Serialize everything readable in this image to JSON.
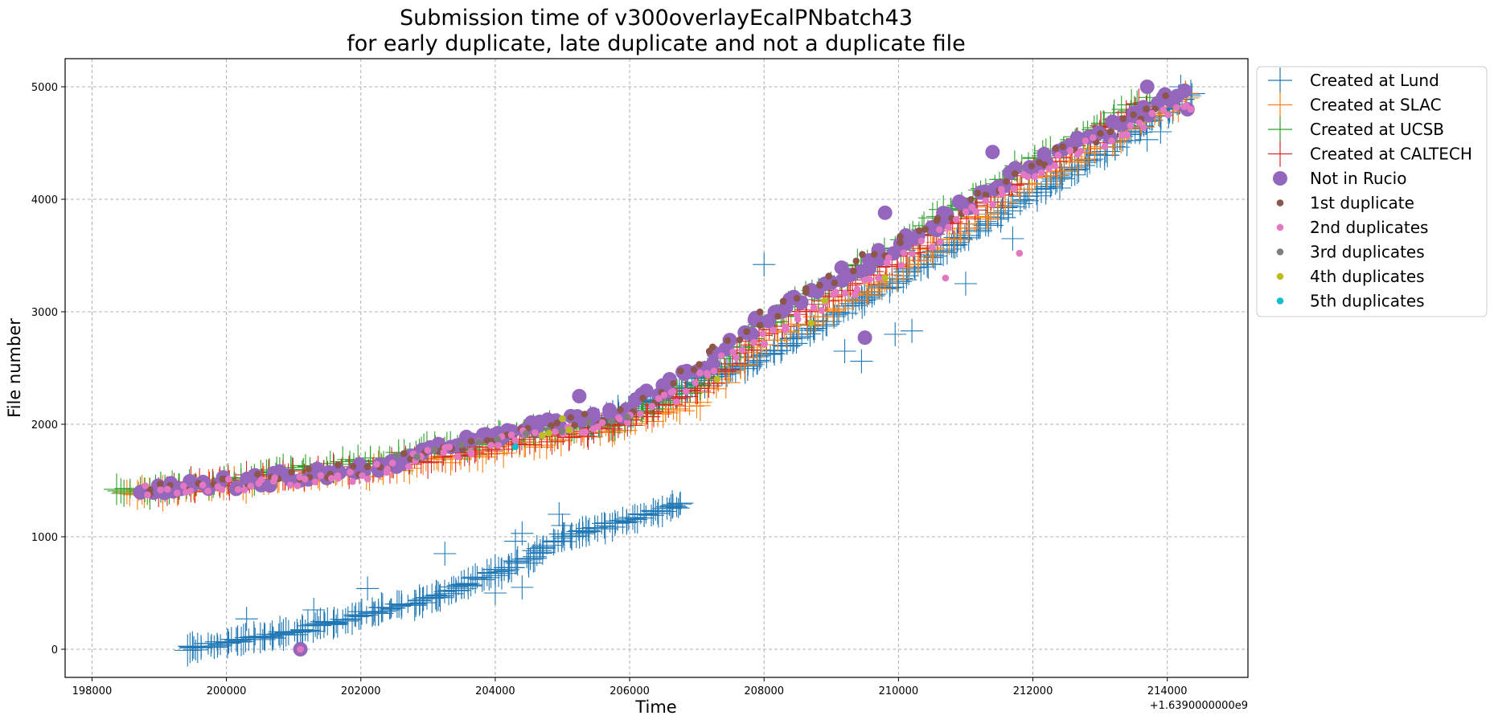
{
  "chart_data": {
    "type": "scatter",
    "title_line1": "Submission time of v300overlayEcalPNbatch43",
    "title_line2": "for early duplicate, late duplicate and not a duplicate file",
    "xlabel": "Time",
    "ylabel": "File number",
    "x_offset_label": "+1.6390000000e9",
    "x_offset": 1639000000,
    "xlim": [
      197600,
      215200
    ],
    "ylim": [
      -250,
      5250
    ],
    "xticks": [
      198000,
      200000,
      202000,
      204000,
      206000,
      208000,
      210000,
      212000,
      214000
    ],
    "xtick_labels": [
      "198000",
      "200000",
      "202000",
      "204000",
      "206000",
      "208000",
      "210000",
      "212000",
      "214000"
    ],
    "yticks": [
      0,
      1000,
      2000,
      3000,
      4000,
      5000
    ],
    "ytick_labels": [
      "0",
      "1000",
      "2000",
      "3000",
      "4000",
      "5000"
    ],
    "grid": true,
    "legend_placement": "outside upper right",
    "legend": [
      {
        "label": "Created at Lund",
        "marker": "plus",
        "color": "#1f77b4"
      },
      {
        "label": "Created at SLAC",
        "marker": "plus",
        "color": "#ff7f0e"
      },
      {
        "label": "Created at UCSB",
        "marker": "plus",
        "color": "#2ca02c"
      },
      {
        "label": "Created at CALTECH",
        "marker": "plus",
        "color": "#d62728"
      },
      {
        "label": "Not in Rucio",
        "marker": "big-dot",
        "color": "#9467bd"
      },
      {
        "label": "1st duplicate",
        "marker": "dot",
        "color": "#8c564b"
      },
      {
        "label": "2nd duplicates",
        "marker": "dot",
        "color": "#e377c2"
      },
      {
        "label": "3rd duplicates",
        "marker": "dot",
        "color": "#7f7f7f"
      },
      {
        "label": "4th duplicates",
        "marker": "dot",
        "color": "#bcbd22"
      },
      {
        "label": "5th duplicates",
        "marker": "dot",
        "color": "#17becf"
      }
    ],
    "series": [
      {
        "name": "Created at Lund",
        "marker": "plus",
        "color": "#1f77b4",
        "trends": [
          {
            "x": [
              199400,
              201000,
              203000,
              204500,
              205000,
              206000,
              206800
            ],
            "y": [
              0,
              150,
              450,
              800,
              1000,
              1150,
              1290
            ],
            "n": 220,
            "jitter": [
              70,
              25
            ]
          },
          {
            "x": [
              205400,
              208000,
              210000,
              212000,
              213000,
              214400
            ],
            "y": [
              1990,
              2600,
              3300,
              4050,
              4400,
              4950
            ],
            "n": 240,
            "jitter": [
              70,
              30
            ]
          }
        ],
        "points": [
          [
            200300,
            270
          ],
          [
            201300,
            350
          ],
          [
            202100,
            540
          ],
          [
            203250,
            850
          ],
          [
            204000,
            500
          ],
          [
            204300,
            960
          ],
          [
            204400,
            1030
          ],
          [
            204400,
            550
          ],
          [
            204950,
            1200
          ],
          [
            205000,
            1100
          ],
          [
            208000,
            3420
          ],
          [
            209200,
            2650
          ],
          [
            209450,
            2560
          ],
          [
            209950,
            2800
          ],
          [
            210200,
            2830
          ],
          [
            211000,
            3250
          ],
          [
            211700,
            3650
          ],
          [
            212400,
            4100
          ],
          [
            213400,
            4700
          ],
          [
            213700,
            4530
          ],
          [
            213900,
            4600
          ],
          [
            214000,
            4850
          ],
          [
            214200,
            5000
          ]
        ]
      },
      {
        "name": "Created at SLAC",
        "marker": "plus",
        "color": "#ff7f0e",
        "trends": [
          {
            "x": [
              198500,
              200000,
              202000,
              204000,
              206000,
              207000,
              208000,
              210000,
              212000,
              214300
            ],
            "y": [
              1370,
              1450,
              1570,
              1760,
              2000,
              2200,
              2700,
              3350,
              4150,
              4900
            ],
            "n": 230,
            "jitter": [
              70,
              45
            ]
          }
        ],
        "points": []
      },
      {
        "name": "Created at UCSB",
        "marker": "plus",
        "color": "#2ca02c",
        "trends": [
          {
            "x": [
              198400,
              200000,
              202000,
              204000,
              206000,
              207000,
              208000,
              210000,
              212000,
              213800
            ],
            "y": [
              1380,
              1500,
              1660,
              1870,
              2050,
              2350,
              2900,
              3600,
              4350,
              4900
            ],
            "n": 230,
            "jitter": [
              70,
              45
            ]
          }
        ],
        "points": []
      },
      {
        "name": "Created at CALTECH",
        "marker": "plus",
        "color": "#d62728",
        "trends": [
          {
            "x": [
              199000,
              200000,
              202000,
              204000,
              206000,
              207000,
              208000,
              210000,
              212000,
              213700
            ],
            "y": [
              1400,
              1500,
              1600,
              1800,
              2000,
              2300,
              2800,
              3500,
              4250,
              4850
            ],
            "n": 180,
            "jitter": [
              70,
              45
            ]
          }
        ],
        "points": []
      },
      {
        "name": "Not in Rucio",
        "marker": "big-dot",
        "color": "#9467bd",
        "trends": [
          {
            "x": [
              198700,
              200000,
              202000,
              204000,
              206000,
              207000,
              208000,
              210000,
              212000,
              214300
            ],
            "y": [
              1400,
              1470,
              1600,
              1900,
              2150,
              2500,
              2950,
              3600,
              4300,
              4950
            ],
            "n": 170,
            "jitter": [
              80,
              60
            ]
          }
        ],
        "points": [
          [
            201100,
            0
          ],
          [
            205250,
            2250
          ],
          [
            209500,
            2770
          ],
          [
            209800,
            3880
          ],
          [
            211400,
            4420
          ],
          [
            213700,
            5000
          ],
          [
            214300,
            4800
          ]
        ]
      },
      {
        "name": "1st duplicate",
        "marker": "dot",
        "color": "#8c564b",
        "trends": [
          {
            "x": [
              198800,
              200000,
              202000,
              204000,
              206000,
              208000,
              210000,
              212000,
              214000
            ],
            "y": [
              1400,
              1470,
              1600,
              1900,
              2100,
              2950,
              3600,
              4300,
              4900
            ],
            "n": 110,
            "jitter": [
              80,
              60
            ]
          }
        ],
        "points": []
      },
      {
        "name": "2nd duplicates",
        "marker": "dot",
        "color": "#e377c2",
        "trends": [
          {
            "x": [
              198800,
              200000,
              202000,
              204000,
              206000,
              208000,
              210000,
              212000,
              214300
            ],
            "y": [
              1400,
              1450,
              1550,
              1850,
              2050,
              2750,
              3450,
              4250,
              4850
            ],
            "n": 150,
            "jitter": [
              80,
              60
            ]
          }
        ],
        "points": [
          [
            201100,
            0
          ],
          [
            211800,
            3520
          ],
          [
            214350,
            4800
          ],
          [
            206700,
            2200
          ],
          [
            209700,
            3300
          ],
          [
            210700,
            3300
          ]
        ]
      },
      {
        "name": "3rd duplicates",
        "marker": "dot",
        "color": "#7f7f7f",
        "trends": [
          {
            "x": [
              202500,
              204500,
              206000
            ],
            "y": [
              1700,
              1900,
              2050
            ],
            "n": 12,
            "jitter": [
              60,
              40
            ]
          }
        ],
        "points": []
      },
      {
        "name": "4th duplicates",
        "marker": "dot",
        "color": "#bcbd22",
        "trends": [],
        "points": [
          [
            204700,
            1900
          ],
          [
            204800,
            1920
          ],
          [
            205000,
            2050
          ],
          [
            205100,
            1950
          ],
          [
            208700,
            2900
          ],
          [
            208900,
            3100
          ],
          [
            209800,
            3300
          ],
          [
            207300,
            2400
          ]
        ]
      },
      {
        "name": "5th duplicates",
        "marker": "dot",
        "color": "#17becf",
        "trends": [],
        "points": [
          [
            204300,
            1800
          ]
        ]
      }
    ]
  }
}
